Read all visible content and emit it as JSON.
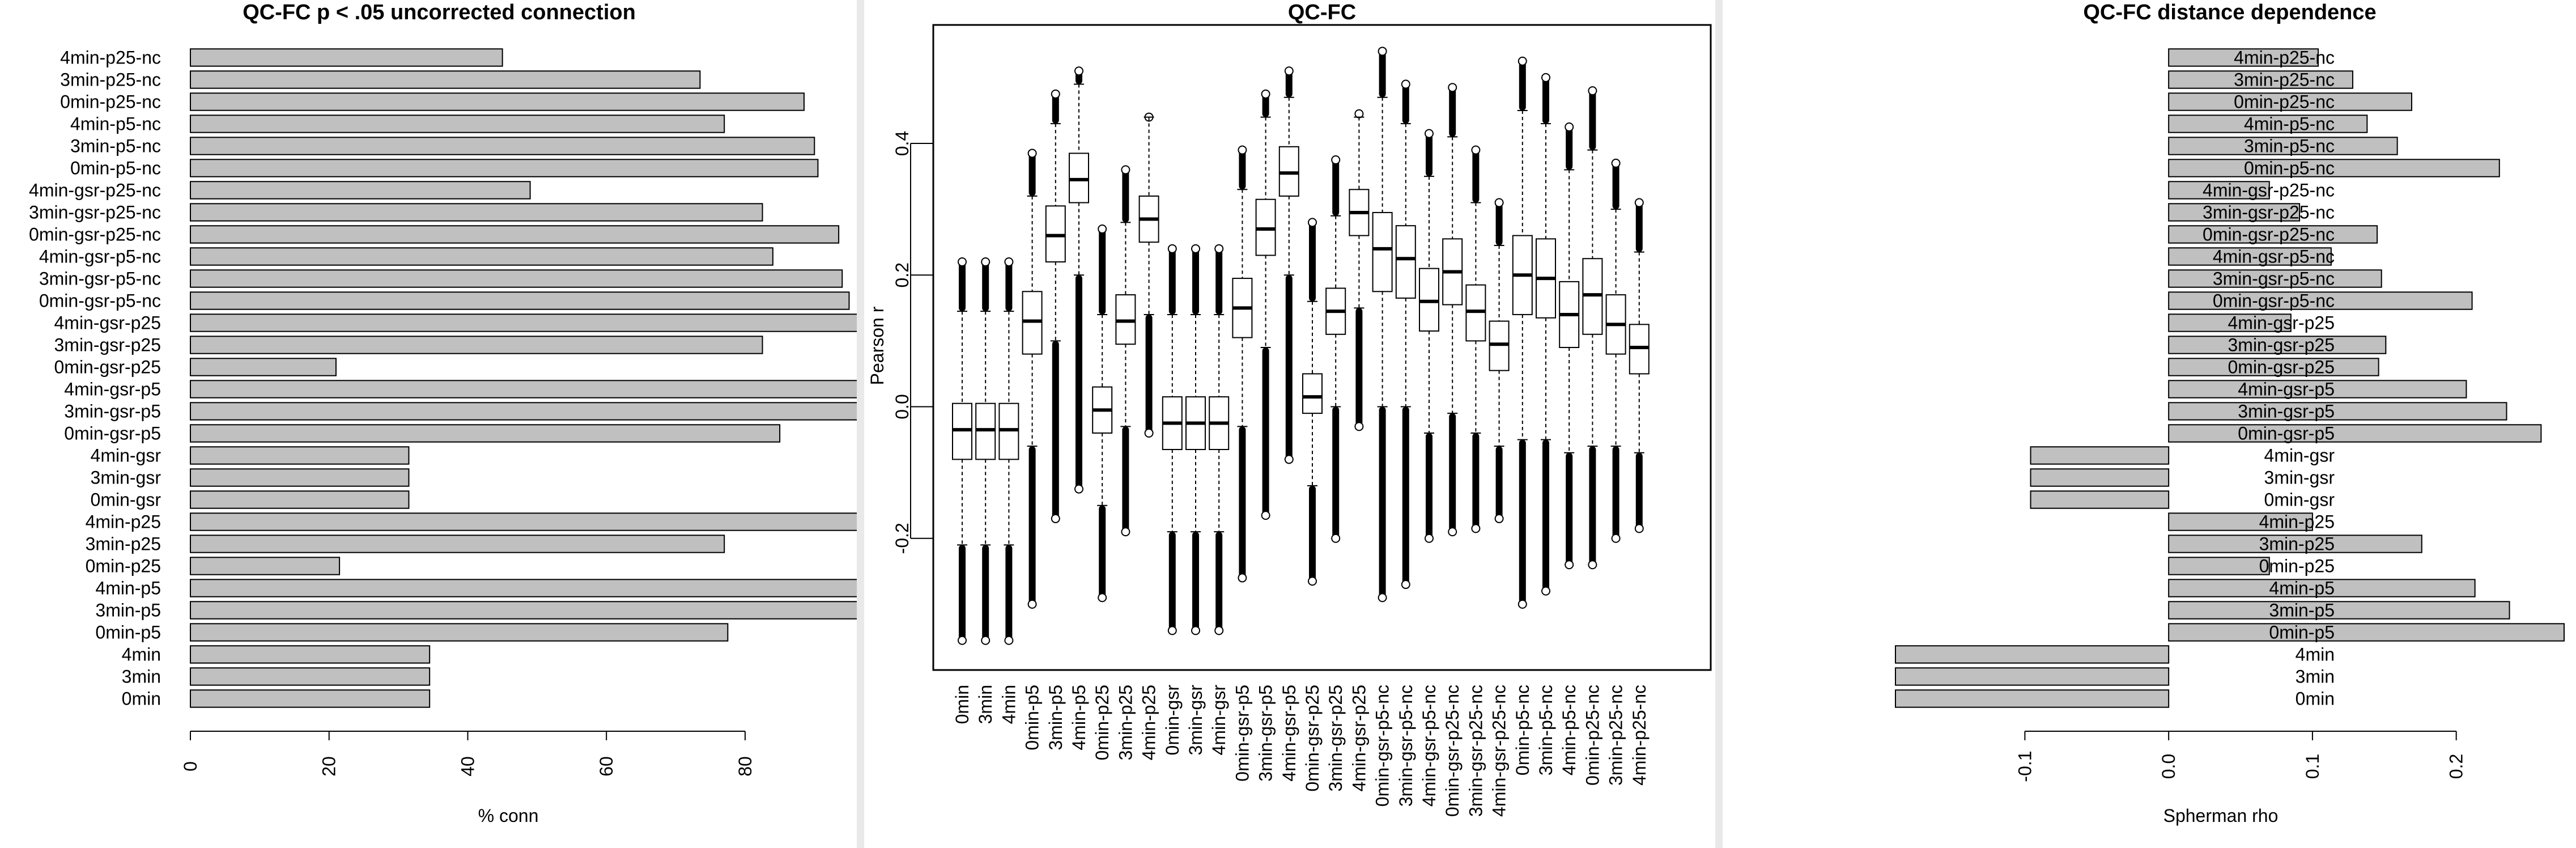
{
  "charts": [
    {
      "id": "left",
      "chart_data": {
        "type": "bar",
        "orientation": "horizontal",
        "title": "QC-FC p < .05 uncorrected connection",
        "xlabel": "% conn",
        "ylabel": "",
        "xlim": [
          0,
          93
        ],
        "xticks": [
          0,
          20,
          40,
          60,
          80
        ],
        "xtick_labels": [
          "0",
          "20",
          "40",
          "60",
          "80"
        ],
        "categories": [
          "0min",
          "3min",
          "4min",
          "0min-p5",
          "3min-p5",
          "4min-p5",
          "0min-p25",
          "3min-p25",
          "4min-p25",
          "0min-gsr",
          "3min-gsr",
          "4min-gsr",
          "0min-gsr-p5",
          "3min-gsr-p5",
          "4min-gsr-p5",
          "0min-gsr-p25",
          "3min-gsr-p25",
          "4min-gsr-p25",
          "0min-gsr-p5-nc",
          "3min-gsr-p5-nc",
          "4min-gsr-p5-nc",
          "0min-gsr-p25-nc",
          "3min-gsr-p25-nc",
          "4min-gsr-p25-nc",
          "0min-p5-nc",
          "3min-p5-nc",
          "4min-p5-nc",
          "0min-p25-nc",
          "3min-p25-nc",
          "4min-p25-nc"
        ],
        "values": [
          34.5,
          34.5,
          34.5,
          77.5,
          98.5,
          100,
          21.5,
          77,
          100,
          31.5,
          31.5,
          31.5,
          85,
          98.5,
          100,
          21,
          82.5,
          100,
          95,
          94,
          84,
          93.5,
          82.5,
          49,
          90.5,
          90,
          77,
          88.5,
          73.5,
          45
        ],
        "bar_color": "#c0c0c0"
      }
    },
    {
      "id": "middle",
      "chart_data": {
        "type": "boxplot",
        "title": "QC-FC",
        "xlabel": "",
        "ylabel": "Pearson r",
        "ylim": [
          -0.4,
          0.58
        ],
        "yticks": [
          -0.2,
          0.0,
          0.2,
          0.4
        ],
        "ytick_labels": [
          "-0.2",
          "0.0",
          "0.2",
          "0.4"
        ],
        "categories": [
          "0min",
          "3min",
          "4min",
          "0min-p5",
          "3min-p5",
          "4min-p5",
          "0min-p25",
          "3min-p25",
          "4min-p25",
          "0min-gsr",
          "3min-gsr",
          "4min-gsr",
          "0min-gsr-p5",
          "3min-gsr-p5",
          "4min-gsr-p5",
          "0min-gsr-p25",
          "3min-gsr-p25",
          "4min-gsr-p25",
          "0min-gsr-p5-nc",
          "3min-gsr-p5-nc",
          "4min-gsr-p5-nc",
          "0min-gsr-p25-nc",
          "3min-gsr-p25-nc",
          "4min-gsr-p25-nc",
          "0min-p5-nc",
          "3min-p5-nc",
          "4min-p5-nc",
          "0min-p25-nc",
          "3min-p25-nc",
          "4min-p25-nc"
        ],
        "boxes": [
          {
            "q1": -0.08,
            "median": -0.035,
            "q3": 0.005,
            "whisker_low": -0.21,
            "whisker_high": 0.145,
            "min": -0.355,
            "max": 0.22
          },
          {
            "q1": -0.08,
            "median": -0.035,
            "q3": 0.005,
            "whisker_low": -0.21,
            "whisker_high": 0.145,
            "min": -0.355,
            "max": 0.22
          },
          {
            "q1": -0.08,
            "median": -0.035,
            "q3": 0.005,
            "whisker_low": -0.21,
            "whisker_high": 0.145,
            "min": -0.355,
            "max": 0.22
          },
          {
            "q1": 0.08,
            "median": 0.13,
            "q3": 0.175,
            "whisker_low": -0.06,
            "whisker_high": 0.32,
            "min": -0.3,
            "max": 0.385
          },
          {
            "q1": 0.22,
            "median": 0.26,
            "q3": 0.305,
            "whisker_low": 0.1,
            "whisker_high": 0.43,
            "min": -0.17,
            "max": 0.475
          },
          {
            "q1": 0.31,
            "median": 0.345,
            "q3": 0.385,
            "whisker_low": 0.2,
            "whisker_high": 0.49,
            "min": -0.125,
            "max": 0.51
          },
          {
            "q1": -0.04,
            "median": -0.005,
            "q3": 0.03,
            "whisker_low": -0.15,
            "whisker_high": 0.14,
            "min": -0.29,
            "max": 0.27
          },
          {
            "q1": 0.095,
            "median": 0.13,
            "q3": 0.17,
            "whisker_low": -0.03,
            "whisker_high": 0.28,
            "min": -0.19,
            "max": 0.36
          },
          {
            "q1": 0.25,
            "median": 0.285,
            "q3": 0.32,
            "whisker_low": 0.14,
            "whisker_high": 0.44,
            "min": -0.04,
            "max": 0.44
          },
          {
            "q1": -0.065,
            "median": -0.025,
            "q3": 0.015,
            "whisker_low": -0.19,
            "whisker_high": 0.14,
            "min": -0.34,
            "max": 0.24
          },
          {
            "q1": -0.065,
            "median": -0.025,
            "q3": 0.015,
            "whisker_low": -0.19,
            "whisker_high": 0.14,
            "min": -0.34,
            "max": 0.24
          },
          {
            "q1": -0.065,
            "median": -0.025,
            "q3": 0.015,
            "whisker_low": -0.19,
            "whisker_high": 0.14,
            "min": -0.34,
            "max": 0.24
          },
          {
            "q1": 0.105,
            "median": 0.15,
            "q3": 0.195,
            "whisker_low": -0.03,
            "whisker_high": 0.33,
            "min": -0.26,
            "max": 0.39
          },
          {
            "q1": 0.23,
            "median": 0.27,
            "q3": 0.315,
            "whisker_low": 0.09,
            "whisker_high": 0.44,
            "min": -0.165,
            "max": 0.475
          },
          {
            "q1": 0.32,
            "median": 0.355,
            "q3": 0.395,
            "whisker_low": 0.2,
            "whisker_high": 0.47,
            "min": -0.08,
            "max": 0.51
          },
          {
            "q1": -0.01,
            "median": 0.015,
            "q3": 0.05,
            "whisker_low": -0.12,
            "whisker_high": 0.16,
            "min": -0.265,
            "max": 0.28
          },
          {
            "q1": 0.11,
            "median": 0.145,
            "q3": 0.18,
            "whisker_low": 0.0,
            "whisker_high": 0.29,
            "min": -0.2,
            "max": 0.375
          },
          {
            "q1": 0.26,
            "median": 0.295,
            "q3": 0.33,
            "whisker_low": 0.15,
            "whisker_high": 0.44,
            "min": -0.03,
            "max": 0.445
          },
          {
            "q1": 0.175,
            "median": 0.24,
            "q3": 0.295,
            "whisker_low": 0.0,
            "whisker_high": 0.47,
            "min": -0.29,
            "max": 0.54
          },
          {
            "q1": 0.165,
            "median": 0.225,
            "q3": 0.275,
            "whisker_low": 0.0,
            "whisker_high": 0.43,
            "min": -0.27,
            "max": 0.49
          },
          {
            "q1": 0.115,
            "median": 0.16,
            "q3": 0.21,
            "whisker_low": -0.04,
            "whisker_high": 0.35,
            "min": -0.2,
            "max": 0.415
          },
          {
            "q1": 0.155,
            "median": 0.205,
            "q3": 0.255,
            "whisker_low": -0.01,
            "whisker_high": 0.41,
            "min": -0.19,
            "max": 0.485
          },
          {
            "q1": 0.1,
            "median": 0.145,
            "q3": 0.185,
            "whisker_low": -0.04,
            "whisker_high": 0.31,
            "min": -0.185,
            "max": 0.39
          },
          {
            "q1": 0.055,
            "median": 0.095,
            "q3": 0.13,
            "whisker_low": -0.06,
            "whisker_high": 0.245,
            "min": -0.17,
            "max": 0.31
          },
          {
            "q1": 0.14,
            "median": 0.2,
            "q3": 0.26,
            "whisker_low": -0.05,
            "whisker_high": 0.45,
            "min": -0.3,
            "max": 0.525
          },
          {
            "q1": 0.135,
            "median": 0.195,
            "q3": 0.255,
            "whisker_low": -0.05,
            "whisker_high": 0.43,
            "min": -0.28,
            "max": 0.5
          },
          {
            "q1": 0.09,
            "median": 0.14,
            "q3": 0.19,
            "whisker_low": -0.07,
            "whisker_high": 0.36,
            "min": -0.24,
            "max": 0.425
          },
          {
            "q1": 0.11,
            "median": 0.17,
            "q3": 0.225,
            "whisker_low": -0.06,
            "whisker_high": 0.39,
            "min": -0.24,
            "max": 0.48
          },
          {
            "q1": 0.08,
            "median": 0.125,
            "q3": 0.17,
            "whisker_low": -0.06,
            "whisker_high": 0.3,
            "min": -0.2,
            "max": 0.37
          },
          {
            "q1": 0.05,
            "median": 0.09,
            "q3": 0.125,
            "whisker_low": -0.07,
            "whisker_high": 0.235,
            "min": -0.185,
            "max": 0.31
          }
        ]
      }
    },
    {
      "id": "right",
      "chart_data": {
        "type": "bar",
        "orientation": "horizontal",
        "title": "QC-FC distance dependence",
        "xlabel": "Spherman rho",
        "ylabel": "",
        "xlim": [
          -0.19,
          0.275
        ],
        "xticks": [
          -0.1,
          0.0,
          0.1,
          0.2
        ],
        "xtick_labels": [
          "-0.1",
          "0.0",
          "0.1",
          "0.2"
        ],
        "categories": [
          "0min",
          "3min",
          "4min",
          "0min-p5",
          "3min-p5",
          "4min-p5",
          "0min-p25",
          "3min-p25",
          "4min-p25",
          "0min-gsr",
          "3min-gsr",
          "4min-gsr",
          "0min-gsr-p5",
          "3min-gsr-p5",
          "4min-gsr-p5",
          "0min-gsr-p25",
          "3min-gsr-p25",
          "4min-gsr-p25",
          "0min-gsr-p5-nc",
          "3min-gsr-p5-nc",
          "4min-gsr-p5-nc",
          "0min-gsr-p25-nc",
          "3min-gsr-p25-nc",
          "4min-gsr-p25-nc",
          "0min-p5-nc",
          "3min-p5-nc",
          "4min-p5-nc",
          "0min-p25-nc",
          "3min-p25-nc",
          "4min-p25-nc"
        ],
        "values": [
          -0.19,
          -0.19,
          -0.19,
          0.275,
          0.237,
          0.213,
          0.07,
          0.176,
          0.1,
          -0.096,
          -0.096,
          -0.096,
          0.259,
          0.235,
          0.207,
          0.146,
          0.151,
          0.085,
          0.211,
          0.148,
          0.113,
          0.145,
          0.091,
          0.07,
          0.23,
          0.159,
          0.138,
          0.169,
          0.128,
          0.104
        ],
        "bar_color": "#c0c0c0"
      }
    }
  ]
}
